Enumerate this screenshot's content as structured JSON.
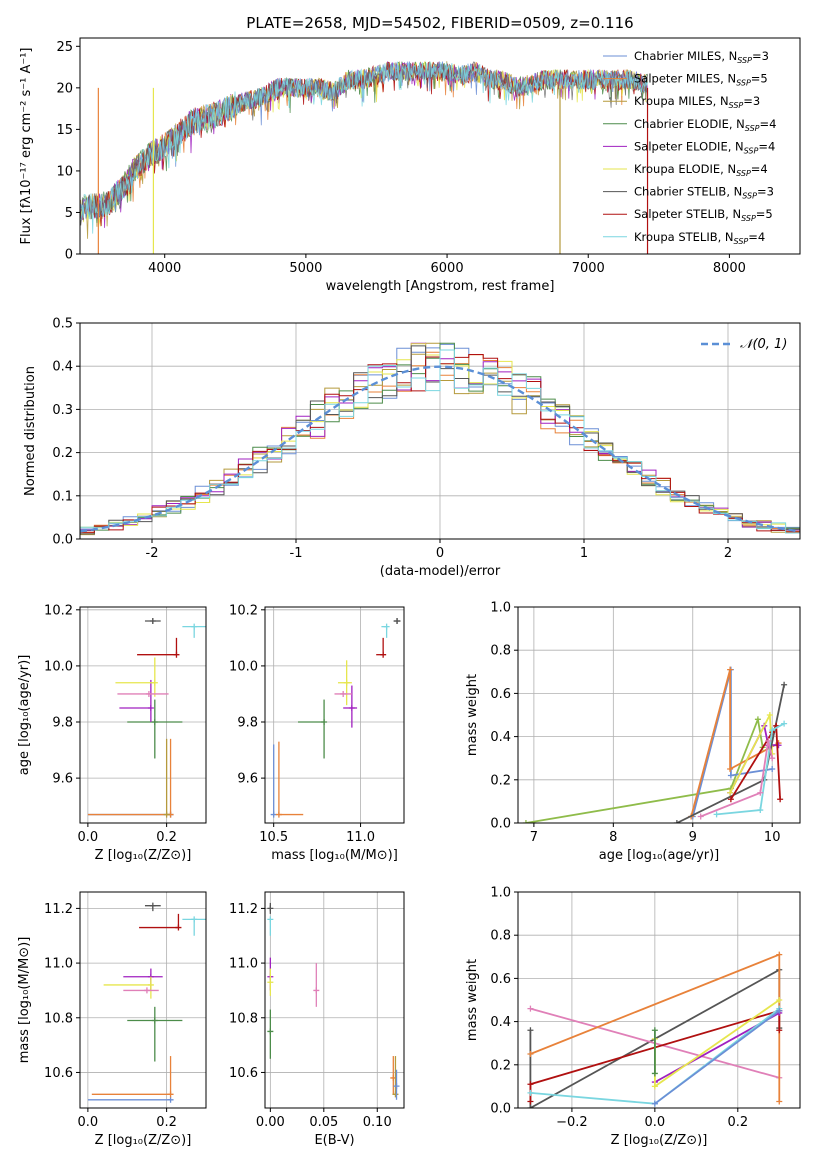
{
  "title": "PLATE=2658, MJD=54502, FIBERID=0509, z=0.116",
  "model_colors": [
    "#6b8fd6",
    "#e8823a",
    "#b59a3c",
    "#4c8c4a",
    "#a020c0",
    "#e6e64e",
    "#555555",
    "#b01010",
    "#7ad6e0"
  ],
  "legend": [
    {
      "label": "Chabrier MILES, N",
      "sub": "SSP",
      "suffix": "=3",
      "color": "#6b8fd6"
    },
    {
      "label": "Salpeter MILES, N",
      "sub": "SSP",
      "suffix": "=5",
      "color": "#e8823a"
    },
    {
      "label": "Kroupa MILES, N",
      "sub": "SSP",
      "suffix": "=3",
      "color": "#b59a3c"
    },
    {
      "label": "Chabrier ELODIE, N",
      "sub": "SSP",
      "suffix": "=4",
      "color": "#4c8c4a"
    },
    {
      "label": "Salpeter ELODIE, N",
      "sub": "SSP",
      "suffix": "=4",
      "color": "#a020c0"
    },
    {
      "label": "Kroupa ELODIE, N",
      "sub": "SSP",
      "suffix": "=4",
      "color": "#e6e64e"
    },
    {
      "label": "Chabrier STELIB, N",
      "sub": "SSP",
      "suffix": "=3",
      "color": "#555555"
    },
    {
      "label": "Salpeter STELIB, N",
      "sub": "SSP",
      "suffix": "=5",
      "color": "#b01010"
    },
    {
      "label": "Kroupa STELIB, N",
      "sub": "SSP",
      "suffix": "=4",
      "color": "#7ad6e0"
    }
  ],
  "chart_data": [
    {
      "id": "spectrum",
      "type": "line",
      "xlabel": "wavelength [Angstrom, rest frame]",
      "ylabel": "Flux [fλ10⁻¹⁷ erg cm⁻² s⁻¹ A⁻¹]",
      "xlim": [
        3400,
        8500
      ],
      "ylim": [
        0,
        26
      ],
      "xticks": [
        4000,
        5000,
        6000,
        7000,
        8000
      ],
      "yticks": [
        0,
        5,
        10,
        15,
        20,
        25
      ],
      "continuum": [
        [
          3400,
          5.5
        ],
        [
          3600,
          6
        ],
        [
          3700,
          8
        ],
        [
          3800,
          10.5
        ],
        [
          3900,
          12
        ],
        [
          4000,
          13
        ],
        [
          4100,
          14.5
        ],
        [
          4200,
          16
        ],
        [
          4300,
          16.5
        ],
        [
          4400,
          17
        ],
        [
          4500,
          18
        ],
        [
          4600,
          18.5
        ],
        [
          4700,
          19
        ],
        [
          4800,
          20
        ],
        [
          4900,
          20
        ],
        [
          5000,
          20
        ],
        [
          5100,
          20
        ],
        [
          5200,
          19.5
        ],
        [
          5300,
          21
        ],
        [
          5400,
          21
        ],
        [
          5500,
          21.5
        ],
        [
          5600,
          22
        ],
        [
          5700,
          22
        ],
        [
          5800,
          22
        ],
        [
          5900,
          22
        ],
        [
          6000,
          22
        ],
        [
          6100,
          21.5
        ],
        [
          6200,
          22
        ],
        [
          6300,
          21
        ],
        [
          6400,
          21
        ],
        [
          6500,
          20
        ],
        [
          6600,
          20.5
        ],
        [
          6700,
          21
        ],
        [
          6800,
          21
        ],
        [
          6900,
          21
        ],
        [
          7000,
          21
        ],
        [
          7100,
          21
        ],
        [
          7200,
          21
        ],
        [
          7300,
          21
        ],
        [
          7400,
          20.5
        ]
      ],
      "dips": [
        {
          "x": 3530,
          "color": "#e8823a"
        },
        {
          "x": 3920,
          "color": "#e6e64e"
        },
        {
          "x": 6800,
          "color": "#b59a3c"
        },
        {
          "x": 7420,
          "color": "#b01010"
        }
      ]
    },
    {
      "id": "residuals",
      "type": "histogram",
      "xlabel": "(data-model)/error",
      "ylabel": "Normed distribution",
      "xlim": [
        -2.5,
        2.5
      ],
      "ylim": [
        0,
        0.5
      ],
      "xticks": [
        -2,
        -1,
        0,
        1,
        2
      ],
      "yticks": [
        0.0,
        0.1,
        0.2,
        0.3,
        0.4,
        0.5
      ],
      "reference": {
        "name": "𝒩(0, 1)",
        "type": "normal",
        "mean": 0,
        "sigma": 1
      }
    },
    {
      "id": "age_vs_Z",
      "type": "scatter",
      "xlabel": "Z [log₁₀(Z/Z⊙)]",
      "ylabel": "age  [log₁₀(age/yr)]",
      "xlim": [
        -0.02,
        0.3
      ],
      "ylim": [
        9.44,
        10.21
      ],
      "xticks": [
        0.0,
        0.2
      ],
      "yticks": [
        9.6,
        9.8,
        10.0,
        10.2
      ],
      "points": [
        {
          "x": 0.21,
          "y": 9.47,
          "xerr": [
            0.21,
            0.0
          ],
          "yerr": [
            0.0,
            0.0
          ],
          "c": 0
        },
        {
          "x": 0.21,
          "y": 9.47,
          "xerr": [
            0.21,
            0.0
          ],
          "yerr": [
            0.0,
            0.27
          ],
          "c": 1
        },
        {
          "x": 0.2,
          "y": 9.47,
          "xerr": [
            0.0,
            0.0
          ],
          "yerr": [
            0.0,
            0.27
          ],
          "c": 2
        },
        {
          "x": 0.17,
          "y": 9.8,
          "xerr": [
            0.07,
            0.07
          ],
          "yerr": [
            0.13,
            0.08
          ],
          "c": 3
        },
        {
          "x": 0.16,
          "y": 9.85,
          "xerr": [
            0.08,
            0.0
          ],
          "yerr": [
            0.05,
            0.1
          ],
          "c": 4
        },
        {
          "x": 0.17,
          "y": 9.94,
          "xerr": [
            0.1,
            0.0
          ],
          "yerr": [
            0.05,
            0.09
          ],
          "c": 5
        },
        {
          "x": 0.165,
          "y": 10.16,
          "xerr": [
            0.02,
            0.02
          ],
          "yerr": [
            0.01,
            0.01
          ],
          "c": 6
        },
        {
          "x": 0.225,
          "y": 10.04,
          "xerr": [
            0.1,
            0.0
          ],
          "yerr": [
            0.0,
            0.06
          ],
          "c": 7
        },
        {
          "x": 0.27,
          "y": 10.14,
          "xerr": [
            0.03,
            0.03
          ],
          "yerr": [
            0.04,
            0.0
          ],
          "c": 8
        },
        {
          "x": 0.155,
          "y": 9.9,
          "xerr": [
            0.08,
            0.05
          ],
          "yerr": [
            0.0,
            0.0
          ],
          "c": "pink"
        }
      ]
    },
    {
      "id": "age_vs_mass",
      "type": "scatter",
      "xlabel": "mass [log₁₀(M/M⊙)]",
      "ylabel": "",
      "xlim": [
        10.45,
        11.25
      ],
      "ylim": [
        9.44,
        10.21
      ],
      "xticks": [
        10.5,
        11.0
      ],
      "yticks": [
        9.6,
        9.8,
        10.0,
        10.2
      ],
      "points": [
        {
          "x": 10.5,
          "y": 9.47,
          "xerr": [
            0,
            0
          ],
          "yerr": [
            0.0,
            0.25
          ],
          "c": 0
        },
        {
          "x": 10.53,
          "y": 9.47,
          "xerr": [
            0.0,
            0.14
          ],
          "yerr": [
            0.0,
            0.26
          ],
          "c": 1
        },
        {
          "x": 10.79,
          "y": 9.8,
          "xerr": [
            0.15,
            0.0
          ],
          "yerr": [
            0.13,
            0.08
          ],
          "c": 3
        },
        {
          "x": 10.95,
          "y": 9.85,
          "xerr": [
            0.05,
            0.03
          ],
          "yerr": [
            0.07,
            0.08
          ],
          "c": 4
        },
        {
          "x": 10.92,
          "y": 9.94,
          "xerr": [
            0.05,
            0.03
          ],
          "yerr": [
            0.08,
            0.08
          ],
          "c": 5
        },
        {
          "x": 11.21,
          "y": 10.16,
          "xerr": [
            0.02,
            0.02
          ],
          "yerr": [
            0.01,
            0.01
          ],
          "c": 6
        },
        {
          "x": 11.13,
          "y": 10.04,
          "xerr": [
            0.04,
            0.0
          ],
          "yerr": [
            0.0,
            0.06
          ],
          "c": 7
        },
        {
          "x": 11.15,
          "y": 10.14,
          "xerr": [
            0.03,
            0.0
          ],
          "yerr": [
            0.04,
            0.0
          ],
          "c": 8
        },
        {
          "x": 10.9,
          "y": 9.9,
          "xerr": [
            0.05,
            0.05
          ],
          "yerr": [
            0.0,
            0.0
          ],
          "c": "pink"
        }
      ]
    },
    {
      "id": "weight_vs_age",
      "type": "line",
      "xlabel": "age  [log₁₀(age/yr)]",
      "ylabel": "mass weight",
      "xlim": [
        6.8,
        10.35
      ],
      "ylim": [
        0,
        1.0
      ],
      "xticks": [
        7,
        8,
        9,
        10
      ],
      "yticks": [
        0.0,
        0.2,
        0.4,
        0.6,
        0.8,
        1.0
      ],
      "series": [
        {
          "c": "green",
          "pts": [
            [
              6.9,
              0.0
            ],
            [
              9.48,
              0.16
            ],
            [
              9.82,
              0.48
            ],
            [
              9.88,
              0.35
            ]
          ]
        },
        {
          "c": 0,
          "pts": [
            [
              9.0,
              0.03
            ],
            [
              9.48,
              0.71
            ],
            [
              9.48,
              0.22
            ],
            [
              10.0,
              0.25
            ]
          ]
        },
        {
          "c": 1,
          "pts": [
            [
              8.98,
              0.03
            ],
            [
              9.47,
              0.71
            ],
            [
              9.47,
              0.25
            ],
            [
              10.08,
              0.37
            ]
          ]
        },
        {
          "c": 4,
          "pts": [
            [
              9.47,
              0.14
            ],
            [
              9.9,
              0.45
            ],
            [
              9.95,
              0.36
            ],
            [
              10.08,
              0.36
            ]
          ]
        },
        {
          "c": 5,
          "pts": [
            [
              9.47,
              0.14
            ],
            [
              9.97,
              0.5
            ],
            [
              10.0,
              0.32
            ]
          ]
        },
        {
          "c": 6,
          "pts": [
            [
              8.8,
              0.0
            ],
            [
              9.9,
              0.2
            ],
            [
              10.15,
              0.64
            ]
          ]
        },
        {
          "c": 7,
          "pts": [
            [
              9.48,
              0.11
            ],
            [
              10.0,
              0.42
            ],
            [
              10.05,
              0.45
            ],
            [
              10.1,
              0.11
            ]
          ]
        },
        {
          "c": 8,
          "pts": [
            [
              9.3,
              0.04
            ],
            [
              9.85,
              0.06
            ],
            [
              10.0,
              0.43
            ],
            [
              10.15,
              0.46
            ]
          ]
        },
        {
          "c": "pink",
          "pts": [
            [
              9.1,
              0.03
            ],
            [
              9.85,
              0.14
            ],
            [
              9.95,
              0.38
            ],
            [
              10.0,
              0.3
            ]
          ]
        }
      ]
    },
    {
      "id": "mass_vs_Z",
      "type": "scatter",
      "xlabel": "Z [log₁₀(Z/Z⊙)]",
      "ylabel": "mass [log₁₀(M/M⊙)]",
      "xlim": [
        -0.02,
        0.3
      ],
      "ylim": [
        10.47,
        11.26
      ],
      "xticks": [
        0.0,
        0.2
      ],
      "yticks": [
        10.6,
        10.8,
        11.0,
        11.2
      ],
      "points": [
        {
          "x": 0.21,
          "y": 10.5,
          "xerr": [
            0.21,
            0.0
          ],
          "yerr": [
            0,
            0.0
          ],
          "c": 0
        },
        {
          "x": 0.21,
          "y": 10.52,
          "xerr": [
            0.2,
            0.0
          ],
          "yerr": [
            0,
            0.14
          ],
          "c": 1
        },
        {
          "x": 0.17,
          "y": 10.79,
          "xerr": [
            0.07,
            0.07
          ],
          "yerr": [
            0.15,
            0.05
          ],
          "c": 3
        },
        {
          "x": 0.16,
          "y": 10.95,
          "xerr": [
            0.07,
            0.03
          ],
          "yerr": [
            0.05,
            0.03
          ],
          "c": 4
        },
        {
          "x": 0.16,
          "y": 10.92,
          "xerr": [
            0.12,
            0.0
          ],
          "yerr": [
            0.05,
            0.03
          ],
          "c": 5
        },
        {
          "x": 0.165,
          "y": 11.21,
          "xerr": [
            0.02,
            0.02
          ],
          "yerr": [
            0.02,
            0.0
          ],
          "c": 6
        },
        {
          "x": 0.23,
          "y": 11.13,
          "xerr": [
            0.1,
            0.0
          ],
          "yerr": [
            0.0,
            0.05
          ],
          "c": 7
        },
        {
          "x": 0.27,
          "y": 11.16,
          "xerr": [
            0.03,
            0.03
          ],
          "yerr": [
            0.06,
            0.0
          ],
          "c": 8
        },
        {
          "x": 0.15,
          "y": 10.9,
          "xerr": [
            0.06,
            0.03
          ],
          "yerr": [
            0,
            0
          ],
          "c": "pink"
        }
      ]
    },
    {
      "id": "mass_vs_EBV",
      "type": "scatter",
      "xlabel": "E(B-V)",
      "ylabel": "",
      "xlim": [
        -0.005,
        0.125
      ],
      "ylim": [
        10.47,
        11.26
      ],
      "xticks": [
        0.0,
        0.05,
        0.1
      ],
      "yticks": [
        10.6,
        10.8,
        11.0,
        11.2
      ],
      "points": [
        {
          "x": 0.0,
          "y": 10.75,
          "yerr": [
            0.1,
            0.08
          ],
          "c": 3
        },
        {
          "x": 0.0,
          "y": 10.95,
          "yerr": [
            0.05,
            0.07
          ],
          "c": 4
        },
        {
          "x": 0.0,
          "y": 10.93,
          "yerr": [
            0.05,
            0.05
          ],
          "c": 5
        },
        {
          "x": 0.0,
          "y": 11.2,
          "yerr": [
            0.02,
            0.02
          ],
          "c": 6
        },
        {
          "x": 0.0,
          "y": 11.16,
          "yerr": [
            0.06,
            0.0
          ],
          "c": 8
        },
        {
          "x": 0.043,
          "y": 10.9,
          "yerr": [
            0.06,
            0.1
          ],
          "c": "pink"
        },
        {
          "x": 0.115,
          "y": 10.58,
          "yerr": [
            0.06,
            0.08
          ],
          "c": 1
        },
        {
          "x": 0.117,
          "y": 10.52,
          "yerr": [
            0.0,
            0.14
          ],
          "c": 2
        },
        {
          "x": 0.118,
          "y": 10.55,
          "yerr": [
            0.05,
            0.06
          ],
          "c": 0
        }
      ]
    },
    {
      "id": "weight_vs_Z",
      "type": "line",
      "xlabel": "Z [log₁₀(Z/Z⊙)]",
      "ylabel": "mass weight",
      "xlim": [
        -0.33,
        0.35
      ],
      "ylim": [
        0,
        1.0
      ],
      "xticks": [
        -0.2,
        0.0,
        0.2
      ],
      "yticks": [
        0.0,
        0.2,
        0.4,
        0.6,
        0.8,
        1.0
      ],
      "series": [
        {
          "c": 6,
          "pts": [
            [
              -0.3,
              0.36
            ],
            [
              -0.3,
              0.0
            ],
            [
              0.3,
              0.64
            ],
            [
              0.3,
              0.37
            ]
          ]
        },
        {
          "c": "pink",
          "pts": [
            [
              -0.3,
              0.46
            ],
            [
              0.3,
              0.14
            ]
          ]
        },
        {
          "c": 1,
          "pts": [
            [
              -0.3,
              0.25
            ],
            [
              0.3,
              0.71
            ],
            [
              0.3,
              0.03
            ]
          ]
        },
        {
          "c": 7,
          "pts": [
            [
              -0.3,
              0.03
            ],
            [
              -0.3,
              0.11
            ],
            [
              0.3,
              0.45
            ],
            [
              0.3,
              0.36
            ]
          ]
        },
        {
          "c": 4,
          "pts": [
            [
              0.0,
              0.12
            ],
            [
              0.3,
              0.44
            ]
          ]
        },
        {
          "c": 5,
          "pts": [
            [
              0.0,
              0.32
            ],
            [
              0.0,
              0.1
            ],
            [
              0.3,
              0.5
            ]
          ]
        },
        {
          "c": 3,
          "pts": [
            [
              0.0,
              0.36
            ],
            [
              0.0,
              0.16
            ]
          ]
        },
        {
          "c": 8,
          "pts": [
            [
              -0.3,
              0.07
            ],
            [
              0.0,
              0.02
            ],
            [
              0.3,
              0.46
            ]
          ]
        },
        {
          "c": 0,
          "pts": [
            [
              0.0,
              0.02
            ],
            [
              0.3,
              0.45
            ]
          ]
        }
      ]
    }
  ]
}
